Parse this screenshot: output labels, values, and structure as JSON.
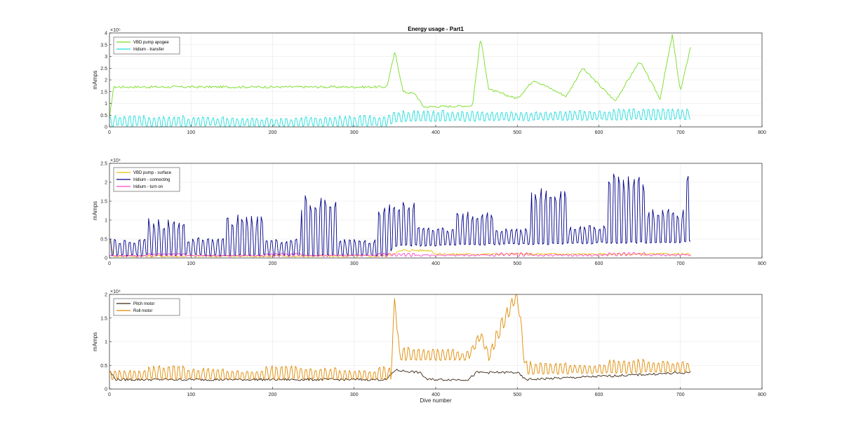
{
  "title": "Energy usage - Part1",
  "xlabel": "Dive number",
  "chart_data": [
    {
      "type": "line",
      "title": "Energy usage - Part1",
      "xlabel": "",
      "ylabel": "mAmps",
      "xlim": [
        0,
        800
      ],
      "ylim": [
        0,
        4
      ],
      "exponent_label": "×10⁵",
      "xticks": [
        "0",
        "100",
        "200",
        "300",
        "400",
        "500",
        "600",
        "700",
        "800"
      ],
      "yticks": [
        "0",
        "0.5",
        "1",
        "1.5",
        "2",
        "2.5",
        "3",
        "3.5",
        "4"
      ],
      "grid": true,
      "legend_position": "top-left",
      "series": [
        {
          "name": "VBD pump apogee",
          "color": "#77dd22",
          "style": "wander",
          "segments": [
            [
              0,
              0.35
            ],
            [
              5,
              1.7
            ],
            [
              340,
              1.7
            ],
            [
              350,
              3.2
            ],
            [
              360,
              1.5
            ],
            [
              375,
              1.4
            ],
            [
              385,
              0.85
            ],
            [
              445,
              0.9
            ],
            [
              455,
              3.8
            ],
            [
              465,
              1.6
            ],
            [
              500,
              1.2
            ],
            [
              520,
              2.0
            ],
            [
              560,
              1.3
            ],
            [
              580,
              2.5
            ],
            [
              620,
              1.1
            ],
            [
              650,
              2.8
            ],
            [
              675,
              1.2
            ],
            [
              690,
              3.9
            ],
            [
              700,
              1.5
            ],
            [
              713,
              3.5
            ]
          ]
        },
        {
          "name": "Iridium - transfer",
          "color": "#22dddd",
          "style": "spike",
          "segments": [
            [
              0,
              0
            ],
            [
              340,
              0
            ],
            [
              350,
              0.2
            ],
            [
              713,
              0.3
            ]
          ],
          "spike_heights": [
            0.5,
            0.5,
            0.45,
            0.4,
            0.4,
            0.45,
            0.5
          ]
        }
      ]
    },
    {
      "type": "line",
      "title": "",
      "xlabel": "",
      "ylabel": "mAmps",
      "xlim": [
        0,
        800
      ],
      "ylim": [
        0,
        2.5
      ],
      "exponent_label": "×10⁴",
      "xticks": [
        "0",
        "100",
        "200",
        "300",
        "400",
        "500",
        "600",
        "700",
        "800"
      ],
      "yticks": [
        "0",
        "0.5",
        "1",
        "1.5",
        "2",
        "2.5"
      ],
      "grid": true,
      "legend_position": "top-left",
      "series": [
        {
          "name": "VBD pump - surface",
          "color": "#e8c000",
          "style": "wander",
          "segments": [
            [
              0,
              0.5
            ],
            [
              5,
              0.05
            ],
            [
              340,
              0.05
            ],
            [
              345,
              0.1
            ],
            [
              360,
              0.2
            ],
            [
              395,
              0.2
            ],
            [
              400,
              0.1
            ],
            [
              713,
              0.1
            ]
          ]
        },
        {
          "name": "Iridium - connecting",
          "color": "#00008b",
          "style": "spike",
          "segments": [
            [
              0,
              0.05
            ],
            [
              340,
              0.05
            ],
            [
              350,
              0.3
            ],
            [
              713,
              0.4
            ]
          ],
          "spike_heights": [
            0.45,
            1.0,
            0.5,
            1.1,
            0.45,
            1.6,
            0.45,
            1.3,
            0.5,
            0.9,
            0.45,
            1.5,
            0.5,
            1.9,
            0.9,
            2.05
          ]
        },
        {
          "name": "Iridium - turn on",
          "color": "#ff44cc",
          "style": "spike",
          "segments": [
            [
              0,
              0.02
            ],
            [
              713,
              0.05
            ]
          ],
          "spike_heights": [
            0.05,
            0.1,
            0.05
          ]
        }
      ]
    },
    {
      "type": "line",
      "title": "",
      "xlabel": "Dive number",
      "ylabel": "mAmps",
      "xlim": [
        0,
        800
      ],
      "ylim": [
        0,
        2
      ],
      "exponent_label": "×10⁴",
      "xticks": [
        "0",
        "100",
        "200",
        "300",
        "400",
        "500",
        "600",
        "700",
        "800"
      ],
      "yticks": [
        "0",
        "0.5",
        "1",
        "1.5",
        "2"
      ],
      "grid": true,
      "legend_position": "top-left",
      "series": [
        {
          "name": "Pitch motor",
          "color": "#3a2410",
          "style": "wander",
          "segments": [
            [
              0,
              0.38
            ],
            [
              8,
              0.2
            ],
            [
              340,
              0.2
            ],
            [
              350,
              0.4
            ],
            [
              380,
              0.35
            ],
            [
              390,
              0.2
            ],
            [
              440,
              0.2
            ],
            [
              450,
              0.35
            ],
            [
              500,
              0.35
            ],
            [
              510,
              0.2
            ],
            [
              713,
              0.35
            ]
          ]
        },
        {
          "name": "Roll motor",
          "color": "#e08a00",
          "style": "spike",
          "segments": [
            [
              0,
              0.2
            ],
            [
              345,
              0.2
            ],
            [
              350,
              1.85
            ],
            [
              355,
              0.6
            ],
            [
              440,
              0.6
            ],
            [
              455,
              1.05
            ],
            [
              465,
              0.6
            ],
            [
              500,
              1.9
            ],
            [
              510,
              0.3
            ],
            [
              713,
              0.35
            ]
          ],
          "spike_heights": [
            0.2,
            0.3,
            0.25
          ]
        }
      ]
    }
  ]
}
